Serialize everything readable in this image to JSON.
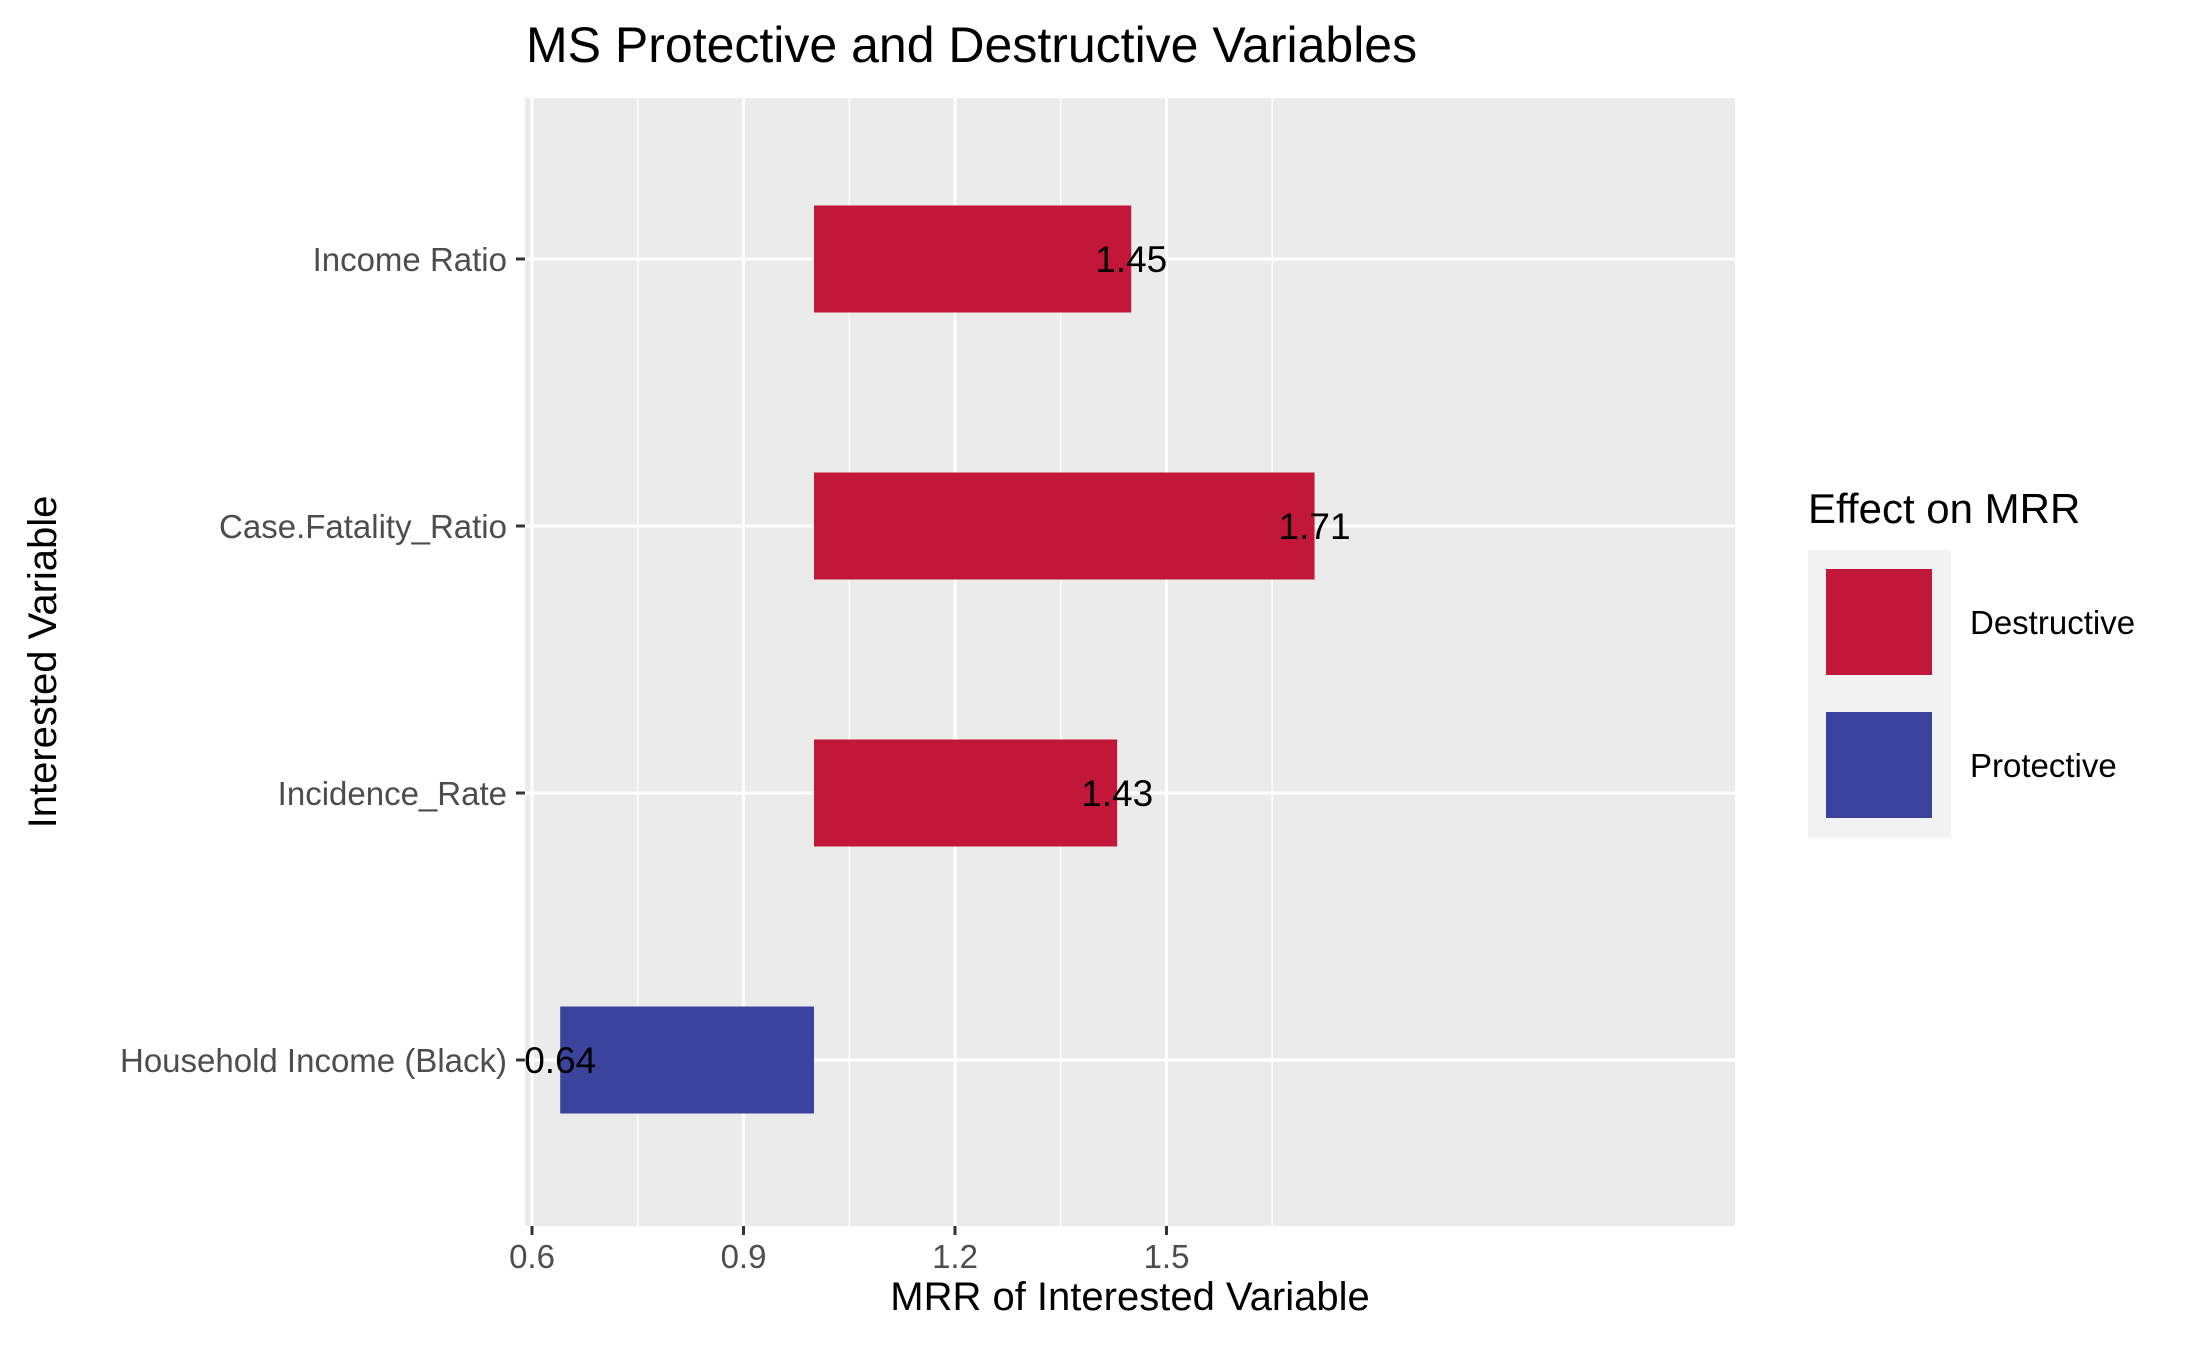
{
  "chart_data": {
    "type": "bar",
    "orientation": "horizontal",
    "title": "MS Protective and Destructive Variables",
    "xlabel": "MRR of Interested Variable",
    "ylabel": "Interested Variable",
    "baseline": 1.0,
    "xlim": [
      0.6,
      1.72
    ],
    "x_ticks": [
      0.6,
      0.9,
      1.2,
      1.5
    ],
    "x_tick_labels": [
      "0.6",
      "0.9",
      "1.2",
      "1.5"
    ],
    "grid": true,
    "categories": [
      "Income Ratio",
      "Case.Fatality_Ratio",
      "Incidence_Rate",
      "Household Income (Black)"
    ],
    "bars": [
      {
        "category": "Income Ratio",
        "value": 1.45,
        "label": "1.45",
        "effect": "Destructive"
      },
      {
        "category": "Case.Fatality_Ratio",
        "value": 1.71,
        "label": "1.71",
        "effect": "Destructive"
      },
      {
        "category": "Incidence_Rate",
        "value": 1.43,
        "label": "1.43",
        "effect": "Destructive"
      },
      {
        "category": "Household Income (Black)",
        "value": 0.64,
        "label": "0.64",
        "effect": "Protective"
      }
    ],
    "legend": {
      "title": "Effect on MRR",
      "placement": "right",
      "entries": [
        {
          "name": "Destructive",
          "color": "#c3173a"
        },
        {
          "name": "Protective",
          "color": "#3a449c"
        }
      ]
    },
    "panel_background": "#ebebeb",
    "grid_color": "#ffffff"
  }
}
